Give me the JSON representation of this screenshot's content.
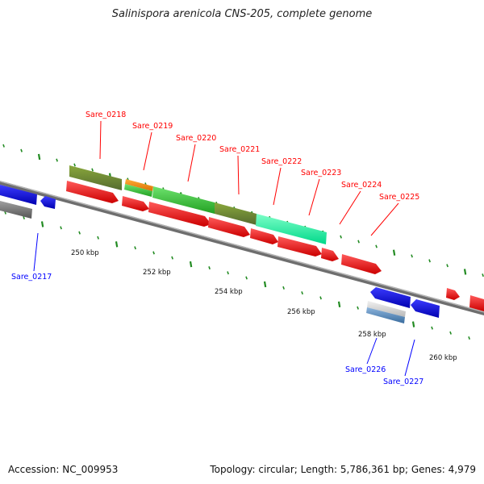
{
  "title": "Salinispora arenicola CNS-205, complete genome",
  "footer": {
    "accession": "Accession: NC_009953",
    "summary": "Topology: circular; Length: 5,786,361 bp; Genes: 4,979"
  },
  "colors": {
    "red": "#ff0000",
    "blue": "#0000ff",
    "olive": "#6b8e23",
    "green": "#32cd32",
    "aqua": "#00ffa0",
    "orange": "#ff8c00",
    "grey": "#777777",
    "steel": "#4682b4",
    "tick": "#228b22",
    "backbone": "#777777"
  },
  "ticks": [
    {
      "label": "250 kbp"
    },
    {
      "label": "252 kbp"
    },
    {
      "label": "254 kbp"
    },
    {
      "label": "256 kbp"
    },
    {
      "label": "258 kbp"
    },
    {
      "label": "260 kbp"
    }
  ],
  "gene_labels": [
    {
      "name": "Sare_0217",
      "color": "blue"
    },
    {
      "name": "Sare_0218",
      "color": "red"
    },
    {
      "name": "Sare_0219",
      "color": "red"
    },
    {
      "name": "Sare_0220",
      "color": "red"
    },
    {
      "name": "Sare_0221",
      "color": "red"
    },
    {
      "name": "Sare_0222",
      "color": "red"
    },
    {
      "name": "Sare_0223",
      "color": "red"
    },
    {
      "name": "Sare_0224",
      "color": "red"
    },
    {
      "name": "Sare_0225",
      "color": "red"
    },
    {
      "name": "Sare_0226",
      "color": "blue"
    },
    {
      "name": "Sare_0227",
      "color": "blue"
    }
  ]
}
